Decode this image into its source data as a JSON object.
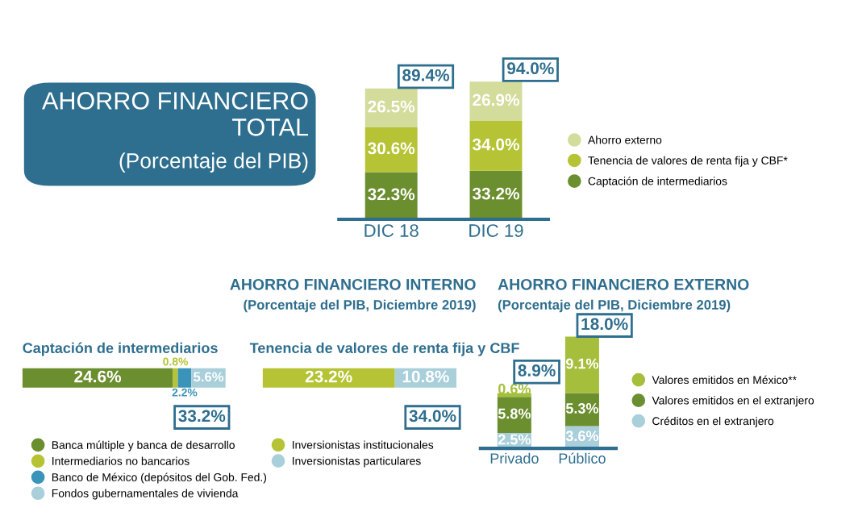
{
  "chart_data": [
    {
      "type": "bar",
      "title": "AHORRO FINANCIERO TOTAL",
      "subtitle": "(Porcentaje del PIB)",
      "categories": [
        "DIC 18",
        "DIC 19"
      ],
      "stacked": true,
      "legend": "right",
      "series": [
        {
          "name": "Captación de intermediarios",
          "color": "#6b8e2f",
          "values": [
            32.3,
            33.2
          ],
          "value_labels": [
            "32.3%",
            "33.2%"
          ]
        },
        {
          "name": "Tenencia de valores de renta fija y CBF*",
          "color": "#b5c334",
          "values": [
            30.6,
            34.0
          ],
          "value_labels": [
            "30.6%",
            "34.0%"
          ]
        },
        {
          "name": "Ahorro externo",
          "color": "#d3dc9b",
          "values": [
            26.5,
            26.9
          ],
          "value_labels": [
            "26.5%",
            "26.9%"
          ]
        }
      ],
      "totals": [
        "89.4%",
        "94.0%"
      ]
    },
    {
      "type": "bar",
      "orientation": "horizontal",
      "stacked": true,
      "title": "Captación de intermediarios",
      "annotations": [
        "AHORRO FINANCIERO INTERNO",
        "(Porcentaje del PIB, Diciembre 2019)"
      ],
      "categories": [
        null
      ],
      "legend": "bottom",
      "series": [
        {
          "name": "Banca múltiple y banca de desarrollo",
          "color": "#6b8e2f",
          "values": [
            24.6
          ],
          "value_labels": [
            "24.6%"
          ]
        },
        {
          "name": "Intermediarios no bancarios",
          "color": "#b5c334",
          "values": [
            0.8
          ],
          "value_labels": [
            "0.8%"
          ]
        },
        {
          "name": "Banco de México (depósitos del Gob. Fed.)",
          "color": "#3a93b8",
          "values": [
            2.2
          ],
          "value_labels": [
            "2.2%"
          ]
        },
        {
          "name": "Fondos gubernamentales de vivienda",
          "color": "#a9cfdb",
          "values": [
            5.6
          ],
          "value_labels": [
            "5.6%"
          ]
        }
      ],
      "totals": [
        "33.2%"
      ]
    },
    {
      "type": "bar",
      "orientation": "horizontal",
      "stacked": true,
      "title": "Tenencia de valores de renta fija y CBF",
      "categories": [
        null
      ],
      "legend": "bottom",
      "series": [
        {
          "name": "Inversionistas institucionales",
          "color": "#b5c334",
          "values": [
            23.2
          ],
          "value_labels": [
            "23.2%"
          ]
        },
        {
          "name": "Inversionistas particulares",
          "color": "#a9cfdb",
          "values": [
            10.8
          ],
          "value_labels": [
            "10.8%"
          ]
        }
      ],
      "totals": [
        "34.0%"
      ]
    },
    {
      "type": "bar",
      "stacked": true,
      "title": "AHORRO FINANCIERO EXTERNO",
      "subtitle": "(Porcentaje del PIB, Diciembre 2019)",
      "categories": [
        "Privado",
        "Público"
      ],
      "legend": "right",
      "series": [
        {
          "name": "Créditos en el extranjero",
          "color": "#a9cfdb",
          "values": [
            2.5,
            3.6
          ],
          "value_labels": [
            "2.5%",
            "3.6%"
          ]
        },
        {
          "name": "Valores emitidos en el extranjero",
          "color": "#6b8e2f",
          "values": [
            5.8,
            5.3
          ],
          "value_labels": [
            "5.8%",
            "5.3%"
          ]
        },
        {
          "name": "Valores emitidos en México**",
          "color": "#a5bf3d",
          "values": [
            0.6,
            9.1
          ],
          "value_labels": [
            "0.6%",
            "9.1%"
          ]
        }
      ],
      "totals": [
        "8.9%",
        "18.0%"
      ]
    }
  ]
}
